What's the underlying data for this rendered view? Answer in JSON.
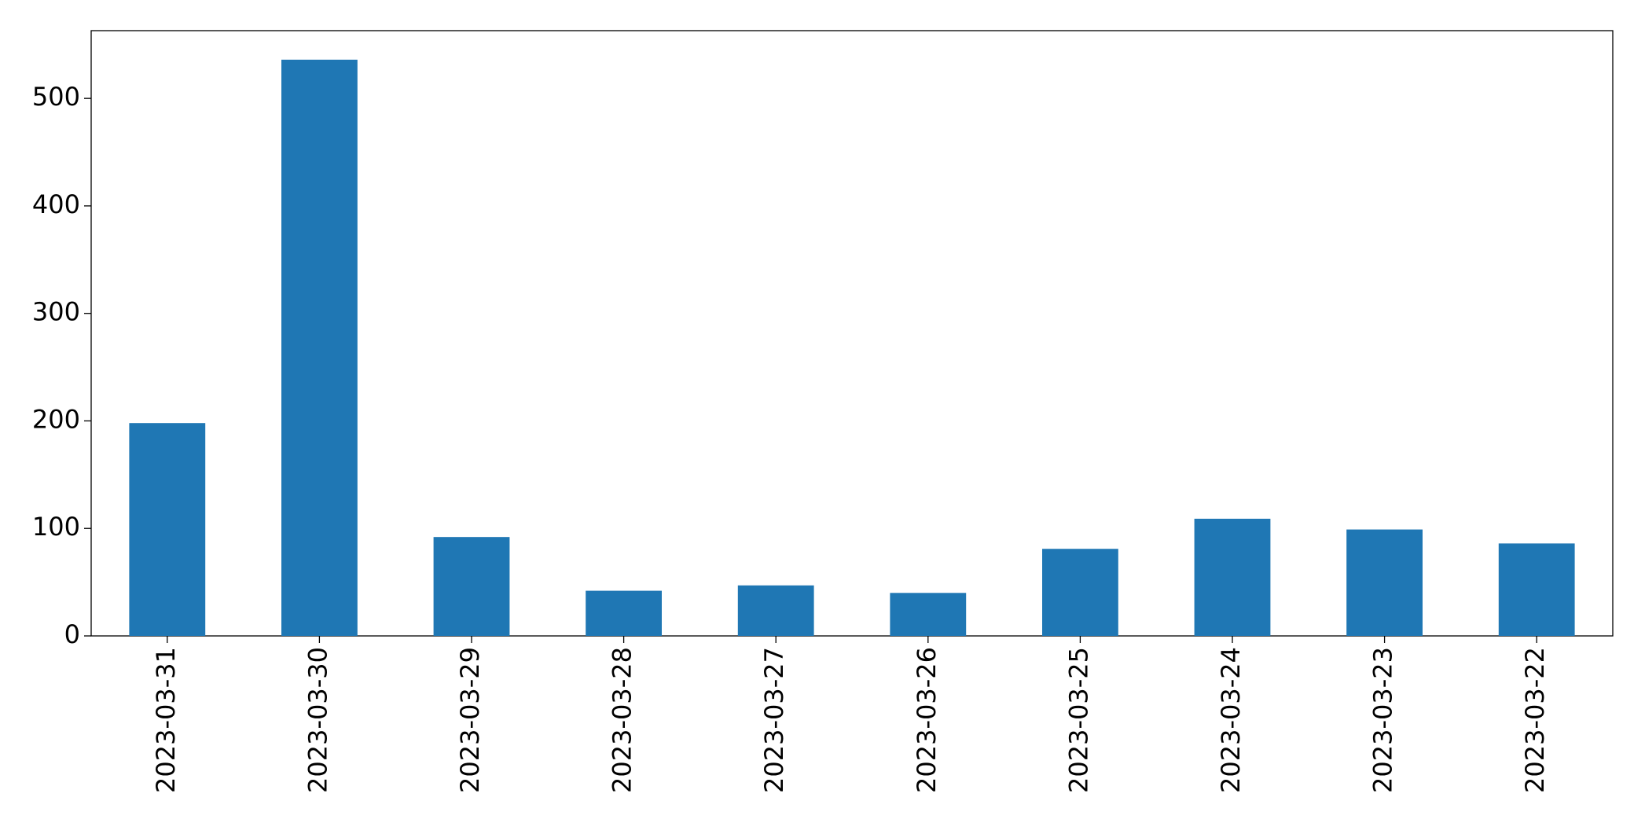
{
  "chart_data": {
    "type": "bar",
    "categories": [
      "2023-03-31",
      "2023-03-30",
      "2023-03-29",
      "2023-03-28",
      "2023-03-27",
      "2023-03-26",
      "2023-03-25",
      "2023-03-24",
      "2023-03-23",
      "2023-03-22"
    ],
    "values": [
      198,
      536,
      92,
      42,
      47,
      40,
      81,
      109,
      99,
      86
    ],
    "color": "#1f77b4",
    "ylim": [
      0,
      563
    ],
    "yticks": [
      0,
      100,
      200,
      300,
      400,
      500
    ],
    "grid": false
  }
}
